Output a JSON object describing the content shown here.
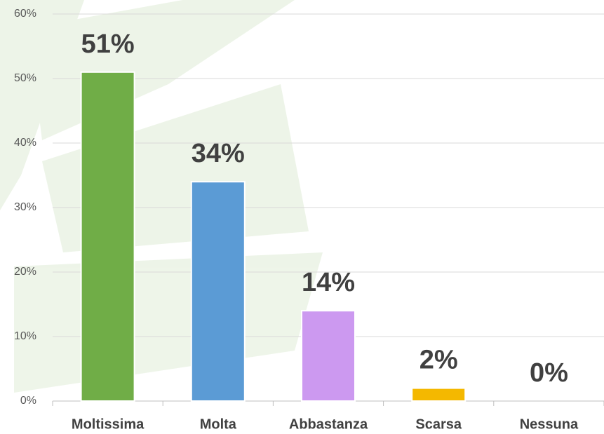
{
  "chart_data": {
    "type": "bar",
    "categories": [
      "Moltissima",
      "Molta",
      "Abbastanza",
      "Scarsa",
      "Nessuna"
    ],
    "values": [
      51,
      34,
      14,
      2,
      0
    ],
    "value_labels": [
      "51%",
      "34%",
      "14%",
      "2%",
      "0%"
    ],
    "colors": [
      "#70ad47",
      "#5b9bd5",
      "#cc99f0",
      "#f4b800",
      "#a5a5a5"
    ],
    "ylim": [
      0,
      60
    ],
    "yticks": [
      {
        "value": 0,
        "label": "0%"
      },
      {
        "value": 10,
        "label": "10%"
      },
      {
        "value": 20,
        "label": "20%"
      },
      {
        "value": 30,
        "label": "30%"
      },
      {
        "value": 40,
        "label": "40%"
      },
      {
        "value": 50,
        "label": "50%"
      },
      {
        "value": 60,
        "label": "60%"
      }
    ],
    "grid": true
  }
}
